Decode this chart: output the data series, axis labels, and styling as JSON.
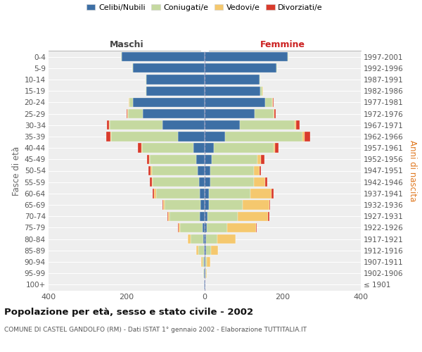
{
  "age_groups": [
    "100+",
    "95-99",
    "90-94",
    "85-89",
    "80-84",
    "75-79",
    "70-74",
    "65-69",
    "60-64",
    "55-59",
    "50-54",
    "45-49",
    "40-44",
    "35-39",
    "30-34",
    "25-29",
    "20-24",
    "15-19",
    "10-14",
    "5-9",
    "0-4"
  ],
  "birth_years": [
    "≤ 1901",
    "1902-1906",
    "1907-1911",
    "1912-1916",
    "1917-1921",
    "1922-1926",
    "1927-1931",
    "1932-1936",
    "1937-1941",
    "1942-1946",
    "1947-1951",
    "1952-1956",
    "1957-1961",
    "1962-1966",
    "1967-1971",
    "1972-1976",
    "1977-1981",
    "1982-1986",
    "1987-1991",
    "1992-1996",
    "1997-2001"
  ],
  "males_celibi": [
    1,
    1,
    2,
    2,
    4,
    5,
    12,
    10,
    12,
    15,
    18,
    22,
    28,
    68,
    108,
    158,
    183,
    150,
    150,
    183,
    213
  ],
  "males_coniugati": [
    0,
    2,
    4,
    14,
    32,
    58,
    78,
    92,
    113,
    118,
    118,
    118,
    133,
    172,
    135,
    38,
    10,
    2,
    2,
    2,
    2
  ],
  "males_vedovi": [
    0,
    1,
    3,
    5,
    8,
    4,
    4,
    4,
    4,
    3,
    3,
    2,
    2,
    2,
    2,
    2,
    1,
    0,
    0,
    0,
    0
  ],
  "males_divorziati": [
    0,
    0,
    0,
    0,
    0,
    2,
    2,
    2,
    5,
    5,
    5,
    5,
    8,
    10,
    5,
    2,
    1,
    0,
    0,
    0,
    0
  ],
  "females_celibi": [
    1,
    1,
    2,
    3,
    4,
    5,
    7,
    10,
    10,
    14,
    14,
    18,
    23,
    53,
    90,
    128,
    155,
    143,
    140,
    183,
    213
  ],
  "females_coniugate": [
    0,
    2,
    4,
    14,
    28,
    53,
    78,
    88,
    108,
    113,
    113,
    118,
    153,
    198,
    140,
    48,
    18,
    5,
    3,
    2,
    2
  ],
  "females_vedove": [
    0,
    2,
    8,
    18,
    48,
    73,
    78,
    68,
    53,
    28,
    13,
    8,
    4,
    4,
    4,
    3,
    2,
    1,
    0,
    0,
    0
  ],
  "females_divorziate": [
    0,
    0,
    0,
    0,
    0,
    2,
    2,
    2,
    5,
    5,
    5,
    10,
    10,
    15,
    10,
    3,
    1,
    0,
    0,
    0,
    0
  ],
  "colors": {
    "celibi": "#3d6fa5",
    "coniugati": "#c5d9a0",
    "vedovi": "#f5c86e",
    "divorziati": "#d93b2c"
  },
  "xlim": 400,
  "title": "Popolazione per età, sesso e stato civile - 2002",
  "subtitle": "COMUNE DI CASTEL GANDOLFO (RM) - Dati ISTAT 1° gennaio 2002 - Elaborazione TUTTITALIA.IT",
  "ylabel_left": "Fasce di età",
  "ylabel_right": "Anni di nascita",
  "legend_labels": [
    "Celibi/Nubili",
    "Coniugati/e",
    "Vedovi/e",
    "Divorziati/e"
  ],
  "maschi_label": "Maschi",
  "femmine_label": "Femmine"
}
